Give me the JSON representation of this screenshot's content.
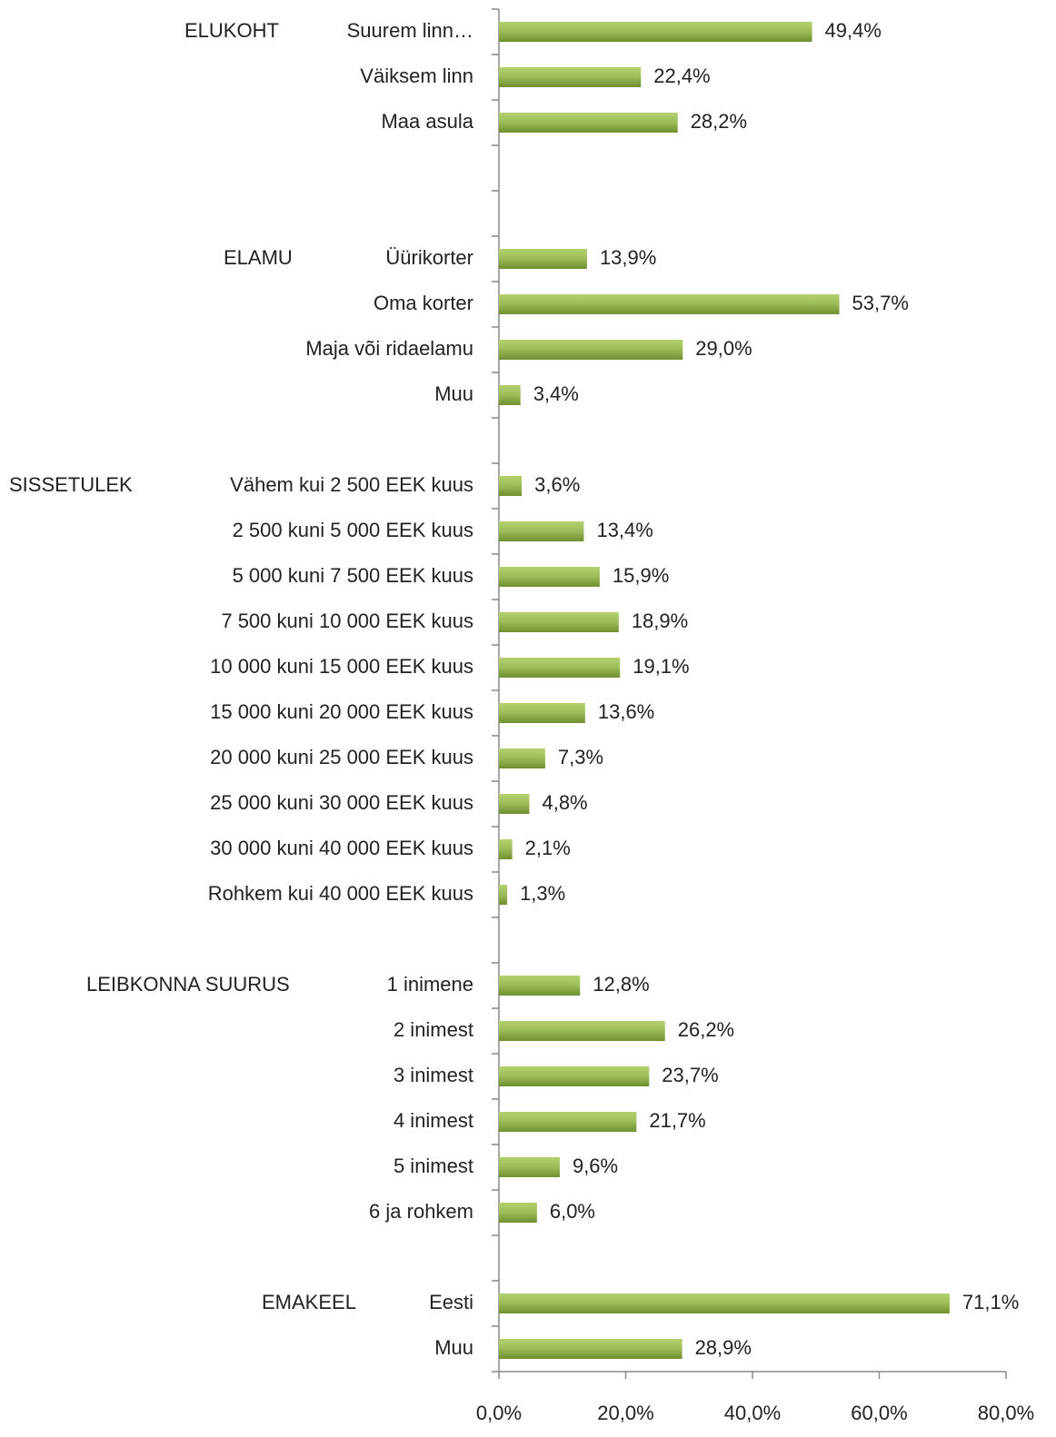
{
  "chart_data": {
    "type": "bar",
    "orientation": "horizontal",
    "categories": [
      "Suurem linn…",
      "Väiksem linn",
      "Maa asula",
      null,
      null,
      "Üürikorter",
      "Oma korter",
      "Maja või ridaelamu",
      "Muu",
      null,
      "Vähem kui 2 500 EEK kuus",
      "2 500 kuni 5 000 EEK kuus",
      "5 000 kuni 7 500 EEK kuus",
      "7 500 kuni 10 000 EEK kuus",
      "10 000 kuni 15 000 EEK kuus",
      "15 000 kuni 20 000 EEK kuus",
      "20 000 kuni 25 000 EEK kuus",
      "25 000 kuni 30 000 EEK kuus",
      "30 000 kuni 40 000 EEK kuus",
      "Rohkem kui 40 000 EEK kuus",
      null,
      "1 inimene",
      "2 inimest",
      "3 inimest",
      "4 inimest",
      "5 inimest",
      "6 ja rohkem",
      null,
      "Eesti",
      "Muu"
    ],
    "group_labels": [
      "ELUKOHT",
      null,
      null,
      null,
      null,
      "ELAMU",
      null,
      null,
      null,
      null,
      "SISSETULEK",
      null,
      null,
      null,
      null,
      null,
      null,
      null,
      null,
      null,
      null,
      "LEIBKONNA SUURUS",
      null,
      null,
      null,
      null,
      null,
      null,
      "EMAKEEL",
      null
    ],
    "values": [
      49.4,
      22.4,
      28.2,
      null,
      null,
      13.9,
      53.7,
      29.0,
      3.4,
      null,
      3.6,
      13.4,
      15.9,
      18.9,
      19.1,
      13.6,
      7.3,
      4.8,
      2.1,
      1.3,
      null,
      12.8,
      26.2,
      23.7,
      21.7,
      9.6,
      6.0,
      null,
      71.1,
      28.9
    ],
    "value_labels": [
      "49,4%",
      "22,4%",
      "28,2%",
      null,
      null,
      "13,9%",
      "53,7%",
      "29,0%",
      "3,4%",
      null,
      "3,6%",
      "13,4%",
      "15,9%",
      "18,9%",
      "19,1%",
      "13,6%",
      "7,3%",
      "4,8%",
      "2,1%",
      "1,3%",
      null,
      "12,8%",
      "26,2%",
      "23,7%",
      "21,7%",
      "9,6%",
      "6,0%",
      null,
      "71,1%",
      "28,9%"
    ],
    "color": "#8fb347",
    "xlim": [
      0,
      80
    ],
    "xticks": [
      {
        "value": 0,
        "label": "0,0%"
      },
      {
        "value": 20,
        "label": "20,0%"
      },
      {
        "value": 40,
        "label": "40,0%"
      },
      {
        "value": 60,
        "label": "60,0%"
      },
      {
        "value": 80,
        "label": "80,0%"
      }
    ],
    "grid": false
  }
}
